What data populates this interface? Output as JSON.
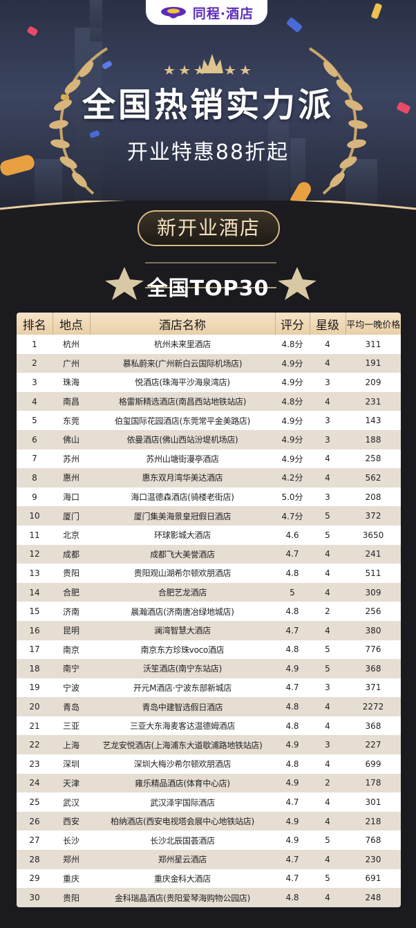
{
  "brand": {
    "name": "同程·酒店"
  },
  "hero": {
    "title": "全国热销实力派",
    "subtitle": "开业特惠88折起",
    "badge": "新开业酒店",
    "ranking_title": "全国TOP30"
  },
  "table": {
    "headers": [
      "排名",
      "地点",
      "酒店名称",
      "评分",
      "星级",
      "平均一晚价格"
    ],
    "rows": [
      [
        "1",
        "杭州",
        "杭州未来里酒店",
        "4.8分",
        "4",
        "311"
      ],
      [
        "2",
        "广州",
        "慕私蔚来(广州新白云国际机场店)",
        "4.9分",
        "4",
        "191"
      ],
      [
        "3",
        "珠海",
        "悦酒店(珠海平沙海泉湾店)",
        "4.9分",
        "3",
        "209"
      ],
      [
        "4",
        "南昌",
        "格雷斯精选酒店(南昌西站地铁站店)",
        "4.8分",
        "4",
        "231"
      ],
      [
        "5",
        "东莞",
        "伯玺国际花园酒店(东莞常平金美路店)",
        "4.9分",
        "3",
        "143"
      ],
      [
        "6",
        "佛山",
        "依曼酒店(佛山西站汾堤机场店)",
        "4.9分",
        "3",
        "188"
      ],
      [
        "7",
        "苏州",
        "苏州山塘街漫亭酒店",
        "4.9分",
        "4",
        "258"
      ],
      [
        "8",
        "惠州",
        "惠东双月湾华美达酒店",
        "4.2分",
        "4",
        "562"
      ],
      [
        "9",
        "海口",
        "海口温德森酒店(骑楼老街店)",
        "5.0分",
        "3",
        "208"
      ],
      [
        "10",
        "厦门",
        "厦门集美海景皇冠假日酒店",
        "4.7分",
        "5",
        "372"
      ],
      [
        "11",
        "北京",
        "环球影城大酒店",
        "4.6",
        "5",
        "3650"
      ],
      [
        "12",
        "成都",
        "成都飞大美誉酒店",
        "4.7",
        "4",
        "241"
      ],
      [
        "13",
        "贵阳",
        "贵阳观山湖希尔顿欢朋酒店",
        "4.8",
        "4",
        "511"
      ],
      [
        "14",
        "合肥",
        "合肥艺龙酒店",
        "5",
        "4",
        "309"
      ],
      [
        "15",
        "济南",
        "晨瀚酒店(济南唐冶绿地城店)",
        "4.8",
        "2",
        "256"
      ],
      [
        "16",
        "昆明",
        "澜湾智慧大酒店",
        "4.7",
        "4",
        "380"
      ],
      [
        "17",
        "南京",
        "南京东方珍珠voco酒店",
        "4.8",
        "5",
        "776"
      ],
      [
        "18",
        "南宁",
        "沃笙酒店(南宁东站店)",
        "4.9",
        "5",
        "368"
      ],
      [
        "19",
        "宁波",
        "开元M酒店·宁波东部新城店",
        "4.7",
        "3",
        "371"
      ],
      [
        "20",
        "青岛",
        "青岛中建智选假日酒店",
        "4.8",
        "4",
        "2272"
      ],
      [
        "21",
        "三亚",
        "三亚大东海麦客达温德姆酒店",
        "4.8",
        "4",
        "368"
      ],
      [
        "22",
        "上海",
        "艺龙安悦酒店(上海浦东大道歇浦路地铁站店)",
        "4.9",
        "3",
        "227"
      ],
      [
        "23",
        "深圳",
        "深圳大梅沙希尔顿欢朋酒店",
        "4.8",
        "4",
        "699"
      ],
      [
        "24",
        "天津",
        "雍乐精品酒店(体育中心店)",
        "4.9",
        "2",
        "178"
      ],
      [
        "25",
        "武汉",
        "武汉泽宇国际酒店",
        "4.7",
        "4",
        "301"
      ],
      [
        "26",
        "西安",
        "柏纳酒店(西安电视塔会展中心地铁站店)",
        "4.9",
        "4",
        "218"
      ],
      [
        "27",
        "长沙",
        "长沙北辰国荟酒店",
        "4.9",
        "5",
        "768"
      ],
      [
        "28",
        "郑州",
        "郑州星云酒店",
        "4.7",
        "4",
        "230"
      ],
      [
        "29",
        "重庆",
        "重庆金科大酒店",
        "4.7",
        "5",
        "691"
      ],
      [
        "30",
        "贵阳",
        "金科瑞晶酒店(贵阳爱琴海购物公园店)",
        "4.8",
        "4",
        "248"
      ]
    ]
  }
}
